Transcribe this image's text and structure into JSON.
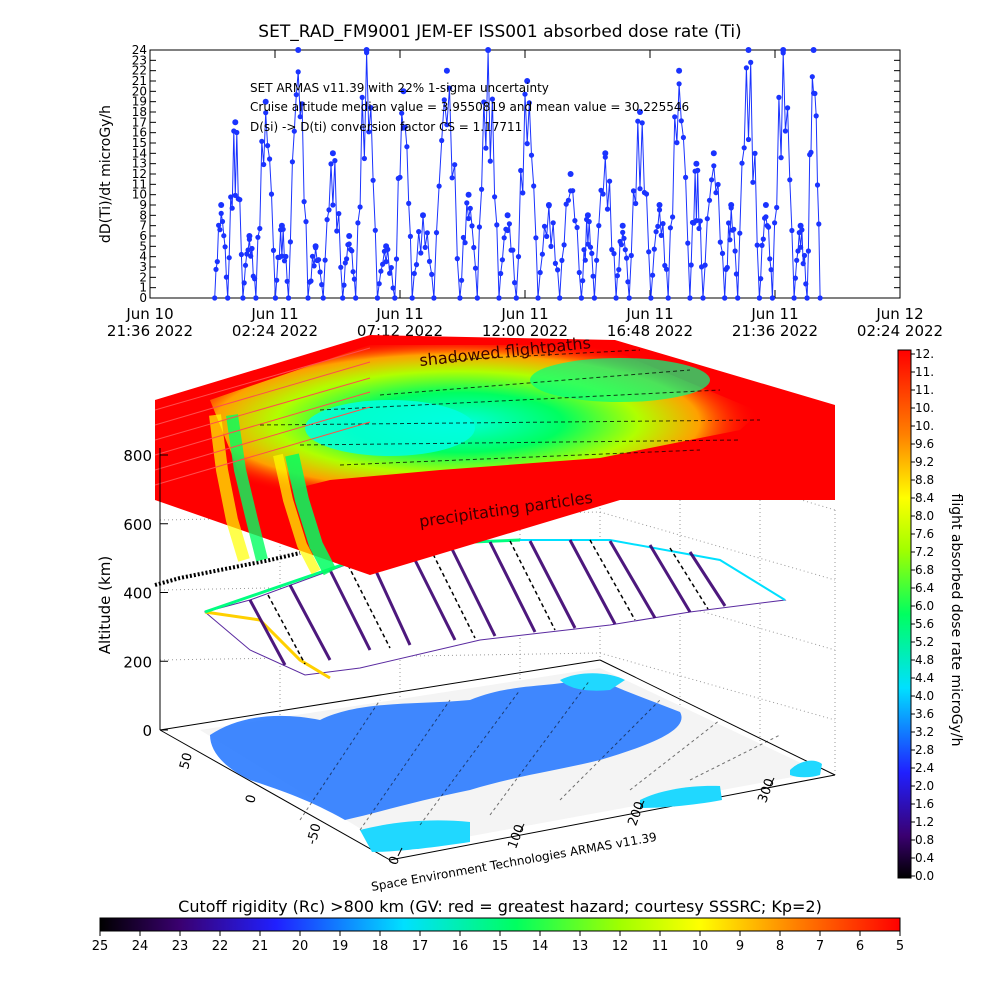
{
  "chart_data": [
    {
      "type": "line",
      "title": "SET_RAD_FM9001  JEM-EF ISS001 absorbed dose rate (Ti)",
      "ylabel": "dD(Ti)/dt microGy/h",
      "ylim": [
        0,
        24
      ],
      "yticks": [
        0,
        1,
        2,
        3,
        4,
        5,
        6,
        7,
        8,
        9,
        10,
        11,
        12,
        13,
        14,
        15,
        16,
        17,
        18,
        19,
        20,
        21,
        22,
        23,
        24
      ],
      "xlim": [
        "2022-06-10T21:36",
        "2022-06-12T02:24"
      ],
      "xticks": [
        {
          "line1": "Jun 10",
          "line2": "21:36 2022"
        },
        {
          "line1": "Jun 11",
          "line2": "02:24 2022"
        },
        {
          "line1": "Jun 11",
          "line2": "07:12 2022"
        },
        {
          "line1": "Jun 11",
          "line2": "12:00 2022"
        },
        {
          "line1": "Jun 11",
          "line2": "16:48 2022"
        },
        {
          "line1": "Jun 11",
          "line2": "21:36 2022"
        },
        {
          "line1": "Jun 12",
          "line2": "02:24 2022"
        }
      ],
      "annotations": [
        "SET ARMAS v11.39 with 22% 1-sigma uncertainty",
        "Cruise altitude median value = 3.9550819 and mean value = 30.225546",
        "D(si) -> D(ti) conversion factor CS = 1.17711"
      ],
      "series_color": "#1a33ff",
      "series": [
        {
          "x": [
            "2022-06-11T00:05",
            "2022-06-11T00:35",
            "2022-06-11T01:10",
            "2022-06-11T01:40",
            "2022-06-11T02:25",
            "2022-06-11T02:55",
            "2022-06-11T03:40",
            "2022-06-11T04:15",
            "2022-06-11T05:00",
            "2022-06-11T05:30",
            "2022-06-11T06:20",
            "2022-06-11T07:00",
            "2022-06-11T07:40",
            "2022-06-11T08:30",
            "2022-06-11T09:30",
            "2022-06-11T10:10",
            "2022-06-11T11:00",
            "2022-06-11T11:40",
            "2022-06-11T12:30",
            "2022-06-11T13:20",
            "2022-06-11T14:10",
            "2022-06-11T14:40",
            "2022-06-11T15:30",
            "2022-06-11T16:00",
            "2022-06-11T16:50",
            "2022-06-11T17:30",
            "2022-06-11T18:20",
            "2022-06-11T18:50",
            "2022-06-11T19:40",
            "2022-06-11T20:10",
            "2022-06-11T21:00",
            "2022-06-11T21:30",
            "2022-06-11T22:20",
            "2022-06-11T22:50"
          ],
          "y": [
            9,
            17,
            6,
            19,
            7,
            24,
            5,
            14,
            6,
            24,
            5,
            20,
            8,
            22,
            10,
            24,
            8,
            21,
            9,
            12,
            8,
            14,
            7,
            18,
            9,
            22,
            13,
            14,
            9,
            24,
            9,
            24,
            7,
            24
          ]
        }
      ]
    },
    {
      "type": "heatmap",
      "zlabel": "Altitude (km)",
      "zticks": [
        "0",
        "200",
        "400",
        "600",
        "800"
      ],
      "xticks": [
        "0",
        "100",
        "200",
        "300"
      ],
      "yticks": [
        "50",
        "0",
        "-50"
      ],
      "labels": [
        "shadowed flightpaths",
        "precipitating particles"
      ],
      "credit": "Space Environment Technologies ARMAS v11.39",
      "colorbar_right": {
        "label": "flight absorbed dose rate microGy/h",
        "ticks": [
          "12.",
          "11.",
          "11.",
          "10.",
          "10.",
          "9.6",
          "9.2",
          "8.8",
          "8.4",
          "8.0",
          "7.6",
          "7.2",
          "6.8",
          "6.4",
          "6.0",
          "5.6",
          "5.2",
          "4.8",
          "4.4",
          "4.0",
          "3.6",
          "3.2",
          "2.8",
          "2.4",
          "2.0",
          "1.6",
          "1.2",
          "0.8",
          "0.4",
          "0.0"
        ]
      },
      "colorbar_bottom": {
        "label": "Cutoff rigidity (Rc) >800 km (GV: red = greatest hazard; courtesy SSSRC; Kp=2)",
        "ticks": [
          "25",
          "24",
          "23",
          "22",
          "21",
          "20",
          "19",
          "18",
          "17",
          "16",
          "15",
          "14",
          "13",
          "12",
          "11",
          "10",
          "9",
          "8",
          "7",
          "6",
          "5"
        ]
      }
    }
  ]
}
